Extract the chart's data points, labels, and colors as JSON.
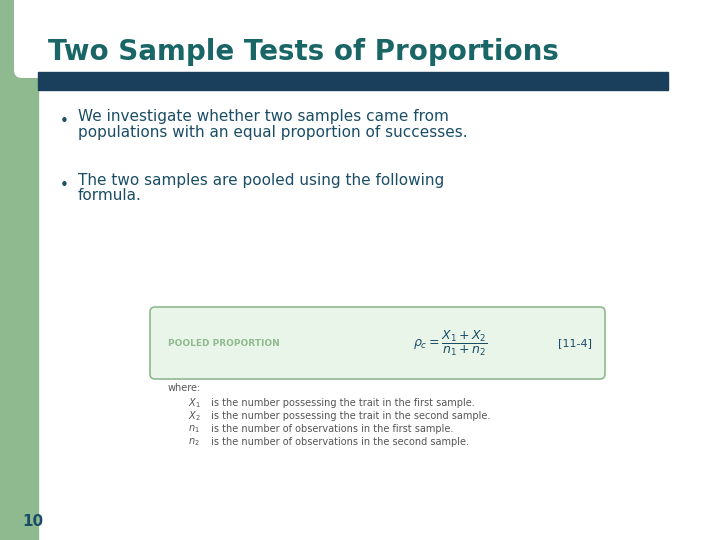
{
  "title": "Two Sample Tests of Proportions",
  "title_color": "#1a6666",
  "title_fontsize": 20,
  "bg_color": "#ffffff",
  "left_bar_color": "#8fba8f",
  "header_bar_color": "#1a3f5c",
  "bullet_color": "#1a4d66",
  "bullet_fontsize": 11,
  "bullet1_line1": "We investigate whether two samples came from",
  "bullet1_line2": "populations with an equal proportion of successes.",
  "bullet2_line1": "The two samples are pooled using the following",
  "bullet2_line2": "formula.",
  "page_number": "10",
  "box_color_fill": "#eaf5ea",
  "box_color_edge": "#8fba8f",
  "box_label": "POOLED PROPORTION",
  "box_label_color": "#8fba8f",
  "box_ref": "[11-4]",
  "formula_color": "#1a4d66",
  "where_text_color": "#555555",
  "corner_color": "#8fba8f"
}
